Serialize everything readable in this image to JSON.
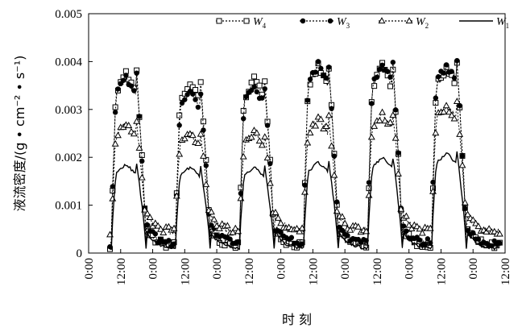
{
  "chart_data": {
    "type": "line",
    "xlabel": "时 刻",
    "ylabel": "液流密度/(g • cm⁻² • s⁻¹)",
    "ylim": [
      0,
      0.005
    ],
    "y_ticks": [
      "0",
      "0.001",
      "0.002",
      "0.003",
      "0.004",
      "0.005"
    ],
    "x_ticks": [
      "0:00",
      "12:00",
      "0:00",
      "12:00",
      "0:00",
      "12:00",
      "0:00",
      "12:00",
      "0:00",
      "12:00",
      "0:00",
      "12:00",
      "0:00",
      "12:00"
    ],
    "xlim_hours": [
      0,
      156
    ],
    "days": 6,
    "start_hour": 8,
    "legend_position": "top",
    "grid": false,
    "series": [
      {
        "name": "W",
        "sub": "4",
        "marker": "square-open",
        "line": "dotted",
        "daily_peak": [
          0.00375,
          0.00355,
          0.00365,
          0.0039,
          0.0039,
          0.0039
        ],
        "night_base": 0.00015
      },
      {
        "name": "W",
        "sub": "3",
        "marker": "circle-filled",
        "line": "dotted",
        "daily_peak": [
          0.0037,
          0.0034,
          0.0035,
          0.00395,
          0.00395,
          0.00395
        ],
        "night_base": 0.0002
      },
      {
        "name": "W",
        "sub": "2",
        "marker": "triangle-open",
        "line": "dotted",
        "daily_peak": [
          0.0027,
          0.0025,
          0.0025,
          0.0028,
          0.0029,
          0.0031
        ],
        "night_base": 0.00045
      },
      {
        "name": "W",
        "sub": "1",
        "marker": "none",
        "line": "solid",
        "daily_peak": [
          0.00185,
          0.0018,
          0.0018,
          0.0019,
          0.002,
          0.0021
        ],
        "night_base": 0.0001
      }
    ]
  }
}
